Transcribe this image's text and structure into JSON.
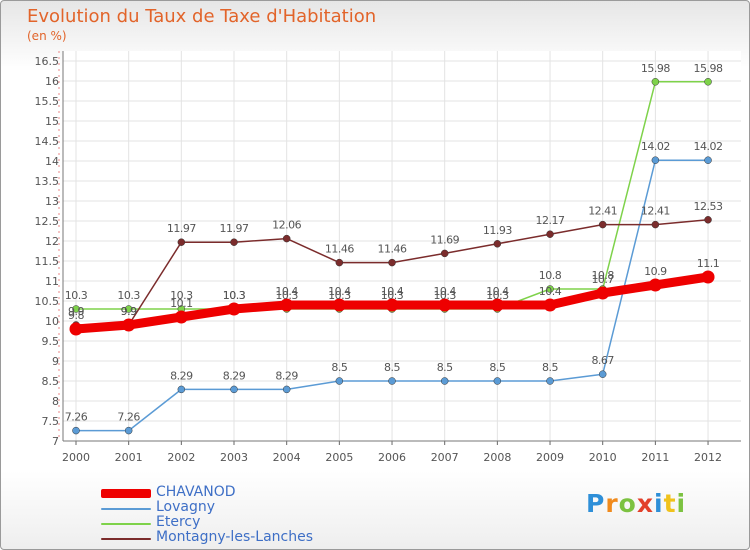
{
  "chart_data": {
    "type": "line",
    "title": "Evolution du Taux de Taxe d'Habitation",
    "subtitle": "(en %)",
    "x": [
      "2000",
      "2001",
      "2002",
      "2003",
      "2004",
      "2005",
      "2006",
      "2007",
      "2008",
      "2009",
      "2010",
      "2011",
      "2012"
    ],
    "y_ticks": [
      "7",
      "7.5",
      "8",
      "8.5",
      "9",
      "9.5",
      "10",
      "10.5",
      "11",
      "11.5",
      "12",
      "12.5",
      "13",
      "13.5",
      "14",
      "14.5",
      "15",
      "15.5",
      "16",
      "16.5"
    ],
    "ylim": [
      7,
      16.5
    ],
    "grid": true,
    "series": [
      {
        "name": "CHAVANOD",
        "color": "#ee0000",
        "emphasis": true,
        "values": [
          9.8,
          9.9,
          10.1,
          10.3,
          10.4,
          10.4,
          10.4,
          10.4,
          10.4,
          10.4,
          10.7,
          10.9,
          11.1
        ],
        "labels": [
          "9.8",
          "9.9",
          "10.1",
          "10.3",
          "10.4",
          "10.4",
          "10.4",
          "10.4",
          "10.4",
          "10.4",
          "10.7",
          "10.9",
          "11.1"
        ]
      },
      {
        "name": "Lovagny",
        "color": "#5b9bd5",
        "values": [
          7.26,
          7.26,
          8.29,
          8.29,
          8.29,
          8.5,
          8.5,
          8.5,
          8.5,
          8.5,
          8.67,
          14.02,
          14.02
        ],
        "labels": [
          "7.26",
          "7.26",
          "8.29",
          "8.29",
          "8.29",
          "8.5",
          "8.5",
          "8.5",
          "8.5",
          "8.5",
          "8.67",
          "14.02",
          "14.02"
        ]
      },
      {
        "name": "Etercy",
        "color": "#7ed24a",
        "values": [
          10.3,
          10.3,
          10.3,
          10.3,
          10.3,
          10.3,
          10.3,
          10.3,
          10.3,
          10.8,
          10.8,
          15.98,
          15.98
        ],
        "labels": [
          "10.3",
          "10.3",
          "10.3",
          "10.3",
          "10.3",
          "10.3",
          "10.3",
          "10.3",
          "10.3",
          "10.8",
          "10.8",
          "15.98",
          "15.98"
        ]
      },
      {
        "name": "Montagny-les-Lanches",
        "color": "#7b2c2c",
        "values": [
          9.9,
          9.9,
          11.97,
          11.97,
          12.06,
          11.46,
          11.46,
          11.69,
          11.93,
          12.17,
          12.41,
          12.41,
          12.53
        ],
        "labels": [
          "9.9",
          "9.9",
          "11.97",
          "11.97",
          "12.06",
          "11.46",
          "11.46",
          "11.69",
          "11.93",
          "12.17",
          "12.41",
          "12.41",
          "12.53"
        ]
      }
    ]
  },
  "legend": {
    "items": [
      "CHAVANOD",
      "Lovagny",
      "Etercy",
      "Montagny-les-Lanches"
    ]
  },
  "logo": {
    "letters": [
      "P",
      "r",
      "o",
      "x",
      "i",
      "t",
      "i"
    ],
    "colors": [
      "#2e8fd8",
      "#f08a1c",
      "#7cc241",
      "#e2402a",
      "#2e8fd8",
      "#f0c21c",
      "#7cc241"
    ]
  }
}
